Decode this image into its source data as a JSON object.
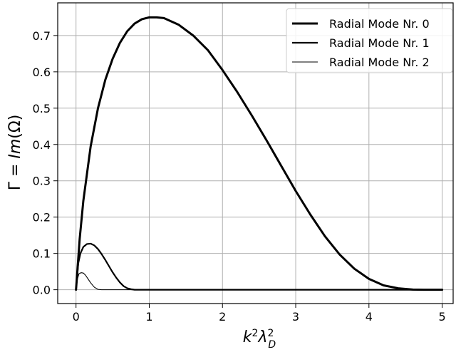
{
  "chart_data": {
    "type": "line",
    "title": "",
    "xlabel": "k²λ_D²",
    "ylabel": "Γ = Im(Ω)",
    "xlim": [
      -0.25,
      5.15
    ],
    "ylim": [
      -0.038,
      0.79
    ],
    "xticks": [
      0,
      1,
      2,
      3,
      4,
      5
    ],
    "yticks": [
      0.0,
      0.1,
      0.2,
      0.3,
      0.4,
      0.5,
      0.6,
      0.7
    ],
    "xtick_labels": [
      "0",
      "1",
      "2",
      "3",
      "4",
      "5"
    ],
    "ytick_labels": [
      "0.0",
      "0.1",
      "0.2",
      "0.3",
      "0.4",
      "0.5",
      "0.6",
      "0.7"
    ],
    "grid": true,
    "legend_position": "top-right",
    "line_color": "#000000",
    "series": [
      {
        "name": "Radial Mode Nr. 0",
        "x": [
          0,
          0.05,
          0.1,
          0.2,
          0.3,
          0.4,
          0.5,
          0.6,
          0.7,
          0.8,
          0.9,
          1.0,
          1.1,
          1.2,
          1.4,
          1.6,
          1.8,
          2.0,
          2.2,
          2.4,
          2.6,
          2.8,
          3.0,
          3.2,
          3.4,
          3.6,
          3.8,
          4.0,
          4.2,
          4.4,
          4.6,
          4.75,
          4.85,
          4.9,
          5.0
        ],
        "y": [
          0,
          0.14,
          0.245,
          0.395,
          0.5,
          0.578,
          0.636,
          0.68,
          0.712,
          0.733,
          0.745,
          0.75,
          0.75,
          0.748,
          0.73,
          0.7,
          0.66,
          0.605,
          0.545,
          0.48,
          0.412,
          0.342,
          0.272,
          0.207,
          0.147,
          0.097,
          0.058,
          0.03,
          0.012,
          0.004,
          0.0005,
          0,
          0,
          0,
          0
        ]
      },
      {
        "name": "Radial Mode Nr. 1",
        "x": [
          0,
          0.03,
          0.06,
          0.1,
          0.15,
          0.2,
          0.25,
          0.3,
          0.35,
          0.4,
          0.45,
          0.5,
          0.55,
          0.6,
          0.65,
          0.7,
          0.75,
          0.8,
          0.85,
          1.0,
          2.0,
          3.0,
          4.0,
          5.0
        ],
        "y": [
          0,
          0.072,
          0.1,
          0.118,
          0.126,
          0.127,
          0.122,
          0.112,
          0.098,
          0.082,
          0.065,
          0.048,
          0.033,
          0.02,
          0.01,
          0.004,
          0.0015,
          0,
          0,
          0,
          0,
          0,
          0,
          0
        ]
      },
      {
        "name": "Radial Mode Nr. 2",
        "x": [
          0,
          0.02,
          0.04,
          0.07,
          0.1,
          0.13,
          0.16,
          0.2,
          0.25,
          0.3,
          0.35,
          0.4,
          1.0,
          2.0,
          3.0,
          4.0,
          5.0
        ],
        "y": [
          0,
          0.03,
          0.044,
          0.047,
          0.046,
          0.04,
          0.031,
          0.019,
          0.007,
          0.001,
          0,
          0,
          0,
          0,
          0,
          0,
          0
        ]
      }
    ]
  }
}
